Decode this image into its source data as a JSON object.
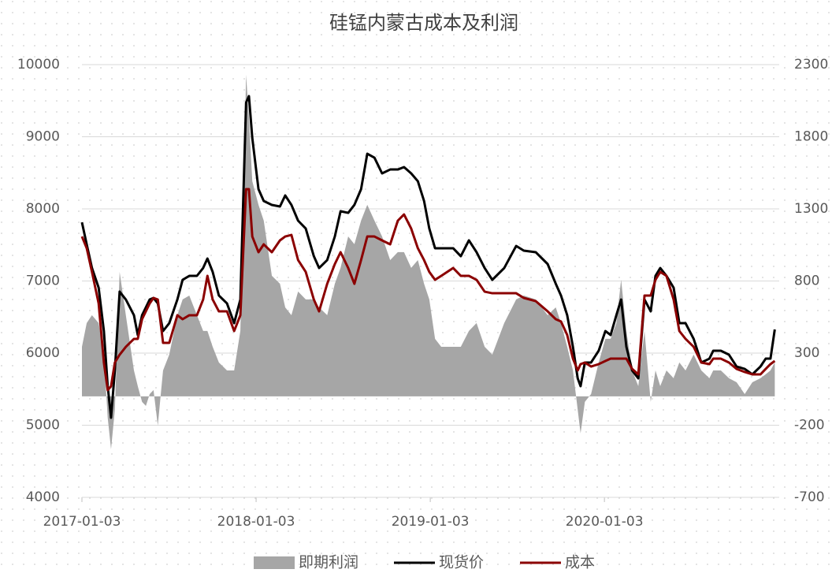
{
  "chart_data": {
    "type": "line",
    "title": "硅锰内蒙古成本及利润",
    "x": [
      "2017-01-03",
      "2017-01-13",
      "2017-01-24",
      "2017-02-07",
      "2017-02-18",
      "2017-02-26",
      "2017-03-05",
      "2017-03-13",
      "2017-03-23",
      "2017-04-05",
      "2017-04-22",
      "2017-04-30",
      "2017-05-09",
      "2017-05-17",
      "2017-05-25",
      "2017-06-02",
      "2017-06-11",
      "2017-06-22",
      "2017-07-05",
      "2017-07-22",
      "2017-08-02",
      "2017-08-16",
      "2017-09-01",
      "2017-09-14",
      "2017-09-23",
      "2017-10-04",
      "2017-10-17",
      "2017-11-03",
      "2017-11-18",
      "2017-12-01",
      "2017-12-13",
      "2017-12-19",
      "2017-12-26",
      "2018-01-08",
      "2018-01-19",
      "2018-02-05",
      "2018-02-22",
      "2018-03-05",
      "2018-03-18",
      "2018-04-01",
      "2018-04-17",
      "2018-05-04",
      "2018-05-15",
      "2018-06-01",
      "2018-06-17",
      "2018-06-29",
      "2018-07-15",
      "2018-07-28",
      "2018-08-11",
      "2018-08-24",
      "2018-09-08",
      "2018-09-24",
      "2018-10-11",
      "2018-10-27",
      "2018-11-09",
      "2018-11-24",
      "2018-12-08",
      "2018-12-21",
      "2019-01-01",
      "2019-01-13",
      "2019-01-26",
      "2019-02-20",
      "2019-03-08",
      "2019-03-25",
      "2019-04-10",
      "2019-04-27",
      "2019-05-13",
      "2019-06-07",
      "2019-07-02",
      "2019-07-18",
      "2019-08-12",
      "2019-09-06",
      "2019-09-23",
      "2019-10-04",
      "2019-10-17",
      "2019-10-29",
      "2019-11-08",
      "2019-11-14",
      "2019-11-23",
      "2019-12-06",
      "2019-12-22",
      "2020-01-05",
      "2020-01-16",
      "2020-01-28",
      "2020-02-07",
      "2020-02-18",
      "2020-03-01",
      "2020-03-14",
      "2020-03-27",
      "2020-04-09",
      "2020-04-19",
      "2020-04-29",
      "2020-05-12",
      "2020-05-27",
      "2020-06-08",
      "2020-06-21",
      "2020-07-08",
      "2020-07-24",
      "2020-08-10",
      "2020-08-18",
      "2020-09-03",
      "2020-09-20",
      "2020-10-06",
      "2020-10-23",
      "2020-11-08",
      "2020-11-25",
      "2020-12-06",
      "2020-12-16",
      "2020-12-25"
    ],
    "series": [
      {
        "name": "即期利润",
        "color": "#a6a6a6",
        "axis": "y2",
        "kind": "area",
        "values": [
          344,
          508,
          563,
          508,
          290,
          -148,
          -366,
          -93,
          863,
          563,
          180,
          71,
          -38,
          -66,
          16,
          44,
          -202,
          180,
          290,
          563,
          672,
          699,
          563,
          454,
          454,
          344,
          235,
          180,
          180,
          454,
          2230,
          1929,
          1492,
          1328,
          1219,
          836,
          781,
          617,
          563,
          727,
          672,
          672,
          617,
          563,
          781,
          891,
          1109,
          1055,
          1219,
          1328,
          1219,
          1109,
          945,
          1000,
          1000,
          891,
          945,
          781,
          672,
          399,
          344,
          344,
          344,
          454,
          508,
          344,
          290,
          508,
          672,
          699,
          672,
          563,
          617,
          508,
          344,
          180,
          -93,
          -257,
          -38,
          16,
          235,
          399,
          399,
          508,
          809,
          454,
          180,
          71,
          454,
          -38,
          180,
          71,
          180,
          126,
          235,
          180,
          290,
          180,
          126,
          180,
          180,
          126,
          98,
          16,
          98,
          126,
          153,
          180,
          235
        ]
      },
      {
        "name": "现货价",
        "color": "#000000",
        "values": [
          7814,
          7508,
          7180,
          6907,
          6306,
          5541,
          5104,
          5760,
          6852,
          6743,
          6525,
          6251,
          6525,
          6634,
          6743,
          6765,
          6689,
          6306,
          6415,
          6743,
          7016,
          7071,
          7071,
          7180,
          7311,
          7126,
          6798,
          6689,
          6415,
          6743,
          9475,
          9563,
          8984,
          8273,
          8109,
          8055,
          8033,
          8186,
          8055,
          7836,
          7727,
          7344,
          7180,
          7290,
          7617,
          7967,
          7945,
          8055,
          8273,
          8765,
          8710,
          8492,
          8546,
          8546,
          8579,
          8492,
          8383,
          8109,
          7727,
          7454,
          7454,
          7454,
          7344,
          7563,
          7399,
          7180,
          7016,
          7180,
          7486,
          7421,
          7399,
          7235,
          6962,
          6798,
          6525,
          6087,
          5650,
          5541,
          5869,
          5869,
          6033,
          6306,
          6251,
          6525,
          6743,
          6087,
          5760,
          5650,
          6743,
          6579,
          7071,
          7180,
          7071,
          6907,
          6415,
          6415,
          6197,
          5869,
          5923,
          6033,
          6033,
          5978,
          5814,
          5781,
          5705,
          5814,
          5923,
          5923,
          6328
        ]
      },
      {
        "name": "成本",
        "color": "#8b0000",
        "values": [
          7617,
          7454,
          7126,
          6689,
          5869,
          5486,
          5541,
          5869,
          5978,
          6087,
          6197,
          6197,
          6470,
          6579,
          6689,
          6765,
          6743,
          6142,
          6142,
          6525,
          6470,
          6525,
          6525,
          6743,
          7071,
          6743,
          6579,
          6579,
          6306,
          6525,
          8273,
          8273,
          7617,
          7399,
          7508,
          7399,
          7563,
          7617,
          7639,
          7290,
          7126,
          6743,
          6579,
          6961,
          7235,
          7399,
          7180,
          6961,
          7290,
          7617,
          7617,
          7563,
          7508,
          7836,
          7923,
          7727,
          7454,
          7290,
          7126,
          7016,
          7071,
          7180,
          7071,
          7071,
          7016,
          6852,
          6830,
          6830,
          6830,
          6765,
          6721,
          6579,
          6470,
          6438,
          6251,
          5923,
          5760,
          5847,
          5869,
          5814,
          5847,
          5891,
          5923,
          5923,
          5923,
          5923,
          5781,
          5705,
          6798,
          6798,
          7016,
          7126,
          7071,
          6743,
          6306,
          6197,
          6087,
          5869,
          5847,
          5923,
          5923,
          5869,
          5781,
          5738,
          5705,
          5705,
          5781,
          5847,
          5891
        ]
      }
    ],
    "xlim": [
      "2017-01-03",
      "2020-12-31"
    ],
    "xticks": [
      "2017-01-03",
      "2018-01-03",
      "2019-01-03",
      "2020-01-03"
    ],
    "ylim": [
      4000,
      10000
    ],
    "yticks": [
      4000,
      5000,
      6000,
      7000,
      8000,
      9000,
      10000
    ],
    "y2lim": [
      -700,
      2300
    ],
    "y2ticks": [
      -700,
      -200,
      300,
      800,
      1300,
      1800,
      2300
    ],
    "grid": true,
    "legend": "bottom"
  }
}
